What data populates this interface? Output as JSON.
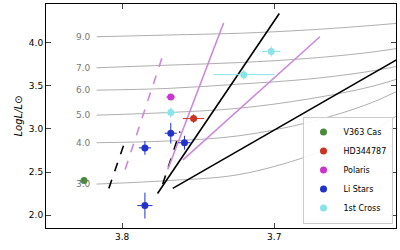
{
  "chart_data": {
    "type": "scatter",
    "y_label": "LogL/L⊙",
    "xlim": [
      3.85,
      3.62
    ],
    "ylim": [
      1.85,
      4.45
    ],
    "xticks": [
      3.8,
      3.7
    ],
    "yticks": [
      {
        "value": 2,
        "label": "2.0"
      },
      {
        "value": 2.5,
        "label": "2.5"
      },
      {
        "value": 3,
        "label": "3.0"
      },
      {
        "value": 3.5,
        "label": "3.5"
      },
      {
        "value": 4,
        "label": "4.0"
      }
    ],
    "legend": "lower right",
    "grid": false,
    "tracks": [
      {
        "label": "9.0",
        "x": [
          3.8167,
          3.77,
          3.7233,
          3.6767,
          3.6367,
          3.61
        ],
        "y": [
          4.07,
          4.09,
          4.11,
          4.15,
          4.2,
          4.24
        ]
      },
      {
        "label": "7.0",
        "x": [
          3.8167,
          3.77,
          3.7233,
          3.6767,
          3.6367,
          3.61
        ],
        "y": [
          3.71,
          3.74,
          3.77,
          3.82,
          3.89,
          3.96
        ]
      },
      {
        "label": "6.0",
        "x": [
          3.8167,
          3.77,
          3.7233,
          3.6767,
          3.6367,
          3.61
        ],
        "y": [
          3.45,
          3.47,
          3.52,
          3.58,
          3.67,
          3.76
        ]
      },
      {
        "label": "5.0",
        "x": [
          3.8167,
          3.77,
          3.7233,
          3.6767,
          3.6367,
          3.61
        ],
        "y": [
          3.16,
          3.19,
          3.24,
          3.35,
          3.49,
          3.63
        ]
      },
      {
        "label": "4.0",
        "x": [
          3.8167,
          3.77,
          3.7233,
          3.6767,
          3.6367,
          3.61
        ],
        "y": [
          2.84,
          2.86,
          2.92,
          3.08,
          3.3,
          3.52
        ]
      },
      {
        "label": "3.0",
        "x": [
          3.8167,
          3.77,
          3.7233,
          3.6767,
          3.6367,
          3.61
        ],
        "y": [
          2.36,
          2.4,
          2.47,
          2.69,
          2.97,
          3.27
        ]
      }
    ],
    "lines": [
      {
        "x": [
          3.7767,
          3.6967
        ],
        "y": [
          2.25,
          4.34
        ],
        "color": "#000000",
        "line_style": "solid"
      },
      {
        "x": [
          3.7667,
          3.61
        ],
        "y": [
          2.31,
          3.9
        ],
        "color": "#000000",
        "line_style": "solid"
      },
      {
        "x": [
          3.8087,
          3.798
        ],
        "y": [
          2.31,
          2.86
        ],
        "color": "#000000",
        "line_style": "dashed"
      },
      {
        "x": [
          3.7733,
          3.762
        ],
        "y": [
          2.36,
          2.97
        ],
        "color": "#000000",
        "line_style": "dashed"
      },
      {
        "x": [
          3.77,
          3.7333
        ],
        "y": [
          2.53,
          4.23
        ],
        "color": "#cc88dd",
        "line_style": "solid"
      },
      {
        "x": [
          3.76,
          3.67
        ],
        "y": [
          2.64,
          4.07
        ],
        "color": "#cc88dd",
        "line_style": "solid"
      },
      {
        "x": [
          3.798,
          3.7733
        ],
        "y": [
          2.53,
          3.85
        ],
        "color": "#cc88dd",
        "line_style": "dashed"
      }
    ],
    "series": [
      {
        "name": "V363 Cas",
        "color": "#4a8a3a",
        "x": [
          3.825
        ],
        "values": [
          2.4
        ],
        "xerr": [
          0.003
        ],
        "yerr": [
          0.04
        ]
      },
      {
        "name": "HD344787",
        "color": "#cc3322",
        "x": [
          3.753
        ],
        "values": [
          3.12
        ],
        "xerr": [
          0.007
        ],
        "yerr": [
          0.05
        ]
      },
      {
        "name": "Polaris",
        "color": "#cc33cc",
        "x": [
          3.768
        ],
        "values": [
          3.37
        ],
        "xerr": [
          0.003
        ],
        "yerr": [
          0.03
        ]
      },
      {
        "name": "Li Stars",
        "color": "#2233cc",
        "x": [
          3.785,
          3.768,
          3.759,
          3.785
        ],
        "values": [
          2.78,
          2.95,
          2.84,
          2.11
        ],
        "xerr": [
          0.004,
          0.004,
          0.004,
          0.005
        ],
        "yerr": [
          0.08,
          0.12,
          0.08,
          0.15
        ]
      },
      {
        "name": "1st Cross",
        "color": "#88e4e8",
        "x": [
          3.768,
          3.72,
          3.702
        ],
        "values": [
          3.19,
          3.63,
          3.9
        ],
        "xerr": [
          0.004,
          0.02,
          0.006
        ],
        "yerr": [
          0.06,
          0.06,
          0.06
        ]
      }
    ]
  }
}
